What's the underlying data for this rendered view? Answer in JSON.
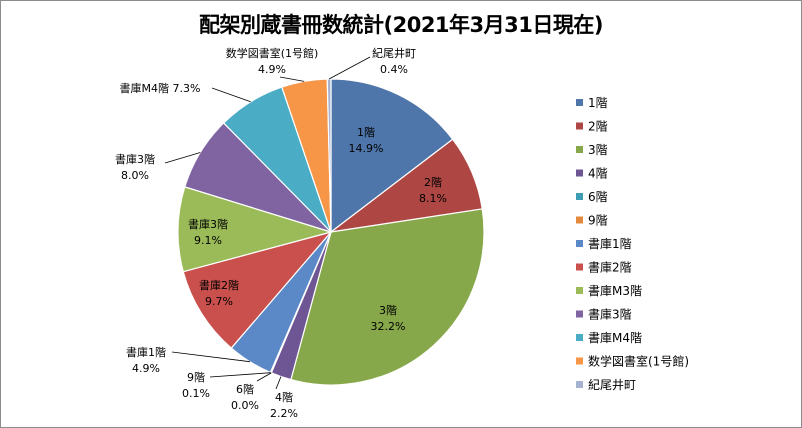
{
  "chart_data": {
    "type": "pie",
    "title": "配架別蔵書冊数統計(2021年3月31日現在)",
    "legend_position": "right",
    "slices": [
      {
        "name": "1階",
        "value": 14.9,
        "label": "14.9%",
        "color": "#4f76aa"
      },
      {
        "name": "2階",
        "value": 8.1,
        "label": "8.1%",
        "color": "#ae4743"
      },
      {
        "name": "3階",
        "value": 32.2,
        "label": "32.2%",
        "color": "#87a84a"
      },
      {
        "name": "4階",
        "value": 2.2,
        "label": "2.2%",
        "color": "#6e5593"
      },
      {
        "name": "6階",
        "value": 0.0,
        "label": "0.0%",
        "color": "#3f9db3"
      },
      {
        "name": "9階",
        "value": 0.1,
        "label": "0.1%",
        "color": "#e48a3d"
      },
      {
        "name": "書庫1階",
        "value": 4.9,
        "label": "4.9%",
        "color": "#5b88c7"
      },
      {
        "name": "書庫2階",
        "value": 9.7,
        "label": "9.7%",
        "color": "#c9504c"
      },
      {
        "name": "書庫M3階",
        "display_name": "書庫3階",
        "value": 9.1,
        "label": "9.1%",
        "color": "#9bbb59"
      },
      {
        "name": "書庫3階",
        "value": 8.0,
        "label": "8.0%",
        "color": "#8064a2"
      },
      {
        "name": "書庫M4階",
        "value": 7.3,
        "label": "7.3%",
        "color": "#4bacc6"
      },
      {
        "name": "数学図書室(1号館)",
        "value": 4.9,
        "label": "4.9%",
        "color": "#f79646"
      },
      {
        "name": "紀尾井町",
        "value": 0.4,
        "label": "0.4%",
        "color": "#a5b3d0"
      }
    ]
  }
}
